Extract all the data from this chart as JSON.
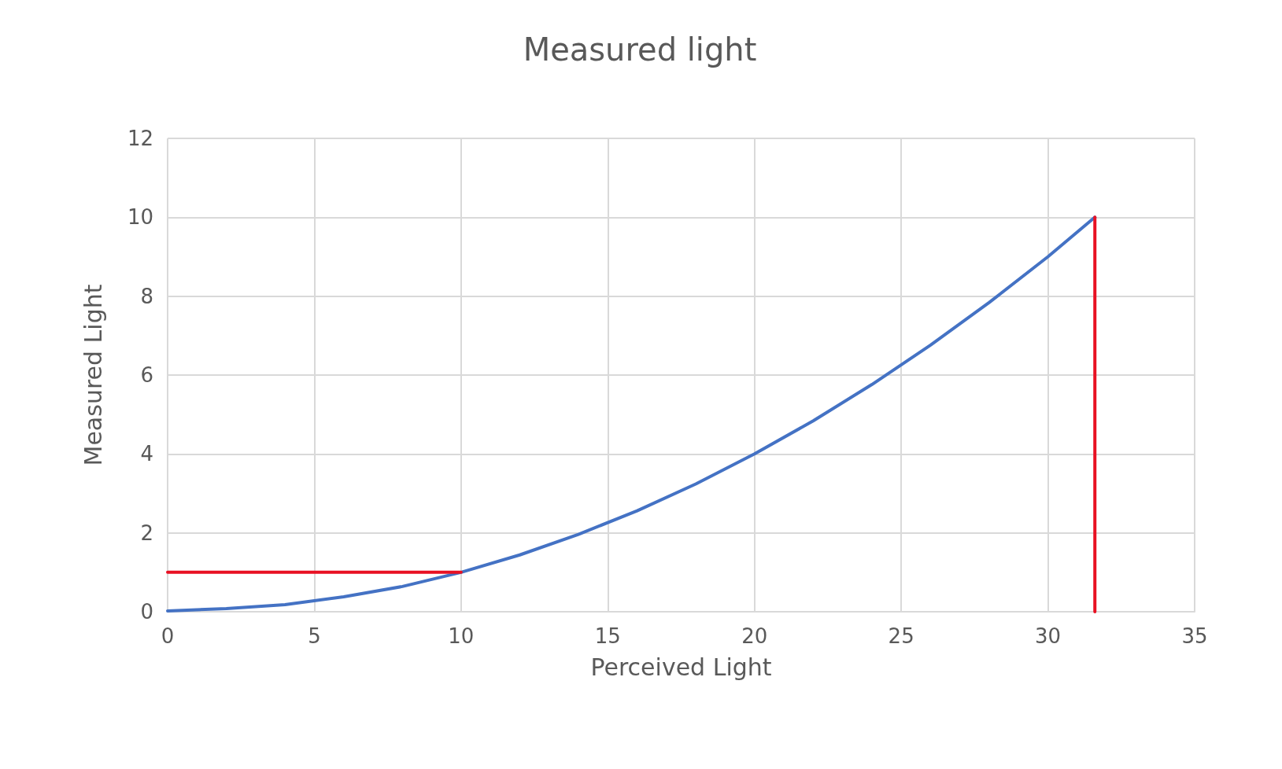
{
  "chart_data": {
    "type": "line",
    "title": "Measured light",
    "xlabel": "Perceived Light",
    "ylabel": "Measured Light",
    "x": [
      0,
      2,
      4,
      6,
      8,
      10,
      12,
      14,
      16,
      18,
      20,
      22,
      24,
      26,
      28,
      30,
      31.6
    ],
    "series": [
      {
        "color": "#4472c4",
        "values": [
          0.02,
          0.08,
          0.18,
          0.38,
          0.64,
          1.0,
          1.44,
          1.96,
          2.56,
          3.24,
          4.0,
          4.84,
          5.76,
          6.76,
          7.84,
          9.0,
          10
        ]
      },
      {
        "color": "#e81123",
        "x": [
          0,
          10
        ],
        "values": [
          1,
          1
        ]
      },
      {
        "color": "#e81123",
        "x": [
          31.6,
          31.6
        ],
        "values": [
          0,
          10
        ]
      }
    ],
    "xlim": [
      0,
      35
    ],
    "xticks": [
      0,
      5,
      10,
      15,
      20,
      25,
      30,
      35
    ],
    "ylim": [
      0,
      12
    ],
    "yticks": [
      0,
      2,
      4,
      6,
      8,
      10,
      12
    ],
    "grid": true,
    "marker": "none",
    "line_style": "solid"
  }
}
